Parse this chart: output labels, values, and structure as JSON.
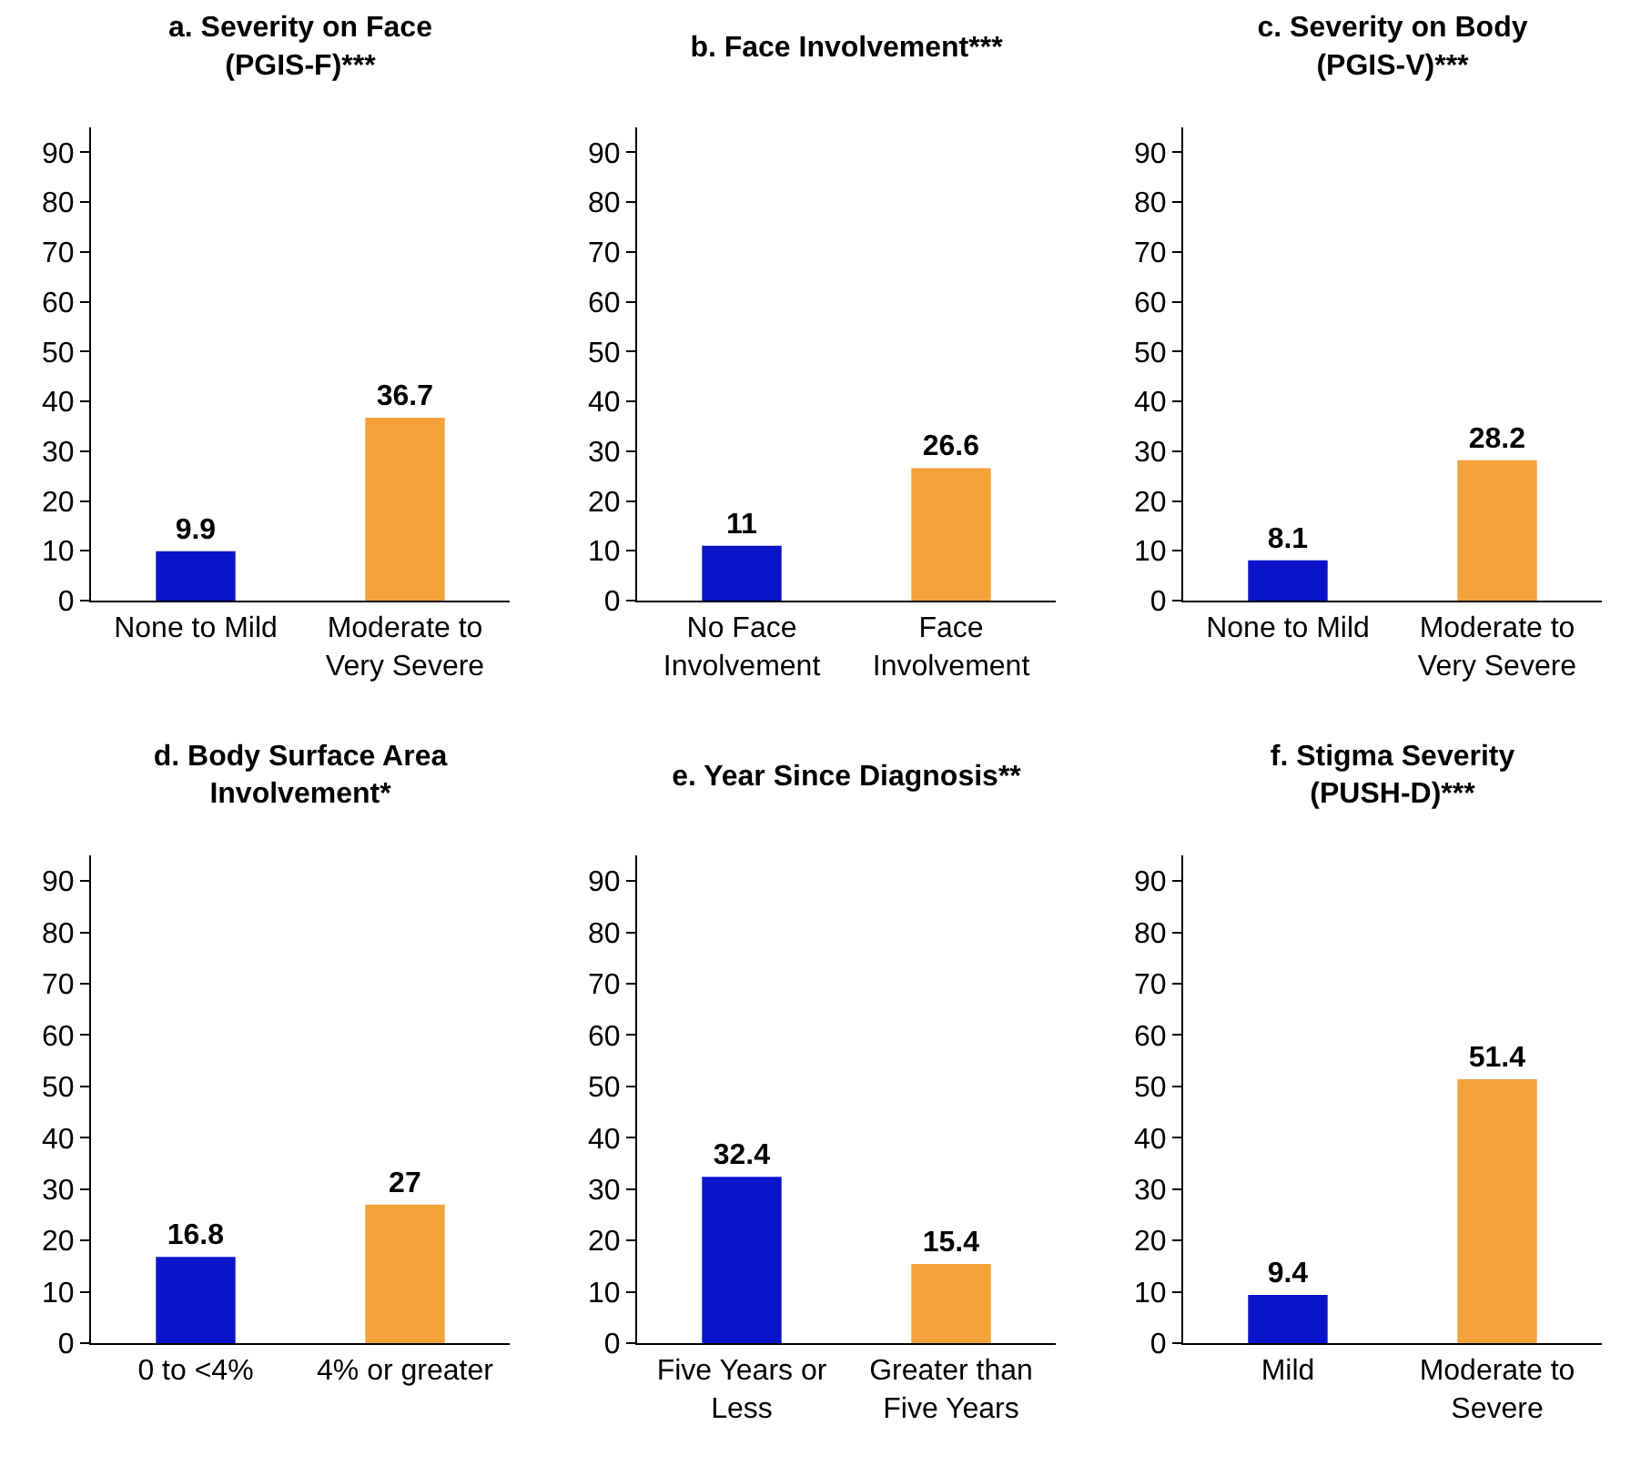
{
  "chart_data": [
    {
      "type": "bar",
      "title": "a. Severity on Face (PGIS-F)***",
      "categories": [
        "None to Mild",
        "Moderate to Very Severe"
      ],
      "values": [
        9.9,
        36.7
      ],
      "colors": [
        "#0a14c8",
        "#f4a23a"
      ],
      "ylim": [
        0,
        95
      ],
      "yticks": [
        0,
        10,
        20,
        30,
        40,
        50,
        60,
        70,
        80,
        90
      ],
      "data_labels": true,
      "grid": false
    },
    {
      "type": "bar",
      "title": "b. Face Involvement***",
      "categories": [
        "No Face Involvement",
        "Face Involvement"
      ],
      "values": [
        11,
        26.6
      ],
      "colors": [
        "#0a14c8",
        "#f4a23a"
      ],
      "ylim": [
        0,
        95
      ],
      "yticks": [
        0,
        10,
        20,
        30,
        40,
        50,
        60,
        70,
        80,
        90
      ],
      "data_labels": true,
      "grid": false
    },
    {
      "type": "bar",
      "title": "c. Severity on Body (PGIS-V)***",
      "categories": [
        "None to Mild",
        "Moderate to Very Severe"
      ],
      "values": [
        8.1,
        28.2
      ],
      "colors": [
        "#0a14c8",
        "#f4a23a"
      ],
      "ylim": [
        0,
        95
      ],
      "yticks": [
        0,
        10,
        20,
        30,
        40,
        50,
        60,
        70,
        80,
        90
      ],
      "data_labels": true,
      "grid": false
    },
    {
      "type": "bar",
      "title": "d. Body Surface Area Involvement*",
      "categories": [
        "0 to <4%",
        "4% or greater"
      ],
      "values": [
        16.8,
        27
      ],
      "colors": [
        "#0a14c8",
        "#f4a23a"
      ],
      "ylim": [
        0,
        95
      ],
      "yticks": [
        0,
        10,
        20,
        30,
        40,
        50,
        60,
        70,
        80,
        90
      ],
      "data_labels": true,
      "grid": false
    },
    {
      "type": "bar",
      "title": "e. Year Since Diagnosis**",
      "categories": [
        "Five Years or Less",
        "Greater than Five Years"
      ],
      "values": [
        32.4,
        15.4
      ],
      "colors": [
        "#0a14c8",
        "#f4a23a"
      ],
      "ylim": [
        0,
        95
      ],
      "yticks": [
        0,
        10,
        20,
        30,
        40,
        50,
        60,
        70,
        80,
        90
      ],
      "data_labels": true,
      "grid": false
    },
    {
      "type": "bar",
      "title": "f. Stigma Severity (PUSH-D)***",
      "categories": [
        "Mild",
        "Moderate to Severe"
      ],
      "values": [
        9.4,
        51.4
      ],
      "colors": [
        "#0a14c8",
        "#f4a23a"
      ],
      "ylim": [
        0,
        95
      ],
      "yticks": [
        0,
        10,
        20,
        30,
        40,
        50,
        60,
        70,
        80,
        90
      ],
      "data_labels": true,
      "grid": false
    }
  ]
}
